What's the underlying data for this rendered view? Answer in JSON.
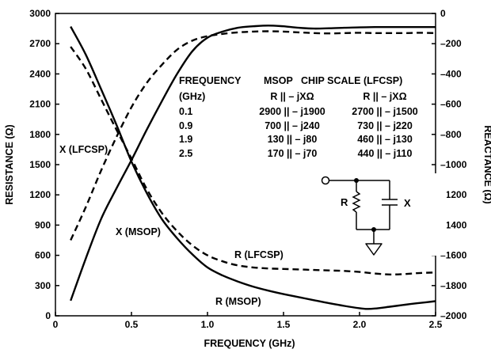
{
  "chart_data": {
    "type": "line",
    "title": "",
    "xlabel": "FREQUENCY (GHz)",
    "ylabel_left": "RESISTANCE (Ω)",
    "ylabel_right": "REACTANCE (Ω)",
    "xlim": [
      0,
      2.5
    ],
    "ylim_left": [
      0,
      3000
    ],
    "ylim_right": [
      -2000,
      0
    ],
    "x_ticks": [
      "0",
      "0.5",
      "1.0",
      "1.5",
      "2.0",
      "2.5"
    ],
    "y_left_ticks": [
      "0",
      "300",
      "600",
      "900",
      "1200",
      "1500",
      "1800",
      "2100",
      "2400",
      "2700",
      "3000"
    ],
    "y_right_ticks": [
      "0",
      "–200",
      "–400",
      "–600",
      "–800",
      "–1000",
      "–1200",
      "–1400",
      "–1600",
      "–1800",
      "–2000"
    ],
    "series": [
      {
        "name": "R (MSOP)",
        "axis": "left",
        "style": "solid",
        "x": [
          0.1,
          0.2,
          0.3,
          0.4,
          0.5,
          0.6,
          0.7,
          0.8,
          0.9,
          1.0,
          1.1,
          1.2,
          1.3,
          1.4,
          1.5,
          1.6,
          1.7,
          1.8,
          1.9,
          2.0,
          2.05,
          2.1,
          2.2,
          2.3,
          2.4,
          2.5
        ],
        "y": [
          2870,
          2590,
          2250,
          1900,
          1530,
          1220,
          960,
          770,
          610,
          480,
          400,
          340,
          290,
          250,
          215,
          185,
          155,
          125,
          98,
          75,
          68,
          72,
          90,
          110,
          128,
          145
        ]
      },
      {
        "name": "R (LFCSP)",
        "axis": "left",
        "style": "dashed",
        "x": [
          0.1,
          0.2,
          0.3,
          0.4,
          0.5,
          0.6,
          0.7,
          0.8,
          0.9,
          1.0,
          1.1,
          1.2,
          1.3,
          1.4,
          1.5,
          1.6,
          1.7,
          1.8,
          1.9,
          2.0,
          2.1,
          2.2,
          2.3,
          2.4,
          2.5
        ],
        "y": [
          2670,
          2450,
          2150,
          1850,
          1560,
          1260,
          1020,
          840,
          700,
          600,
          540,
          500,
          480,
          470,
          465,
          460,
          455,
          450,
          445,
          435,
          420,
          410,
          415,
          425,
          430
        ]
      },
      {
        "name": "X (MSOP)",
        "axis": "right",
        "style": "solid",
        "x": [
          0.1,
          0.2,
          0.3,
          0.4,
          0.5,
          0.6,
          0.7,
          0.8,
          0.9,
          1.0,
          1.1,
          1.2,
          1.3,
          1.4,
          1.5,
          1.6,
          1.7,
          1.8,
          1.9,
          2.0,
          2.1,
          2.2,
          2.3,
          2.4,
          2.5
        ],
        "y": [
          -1900,
          -1620,
          -1360,
          -1160,
          -970,
          -770,
          -580,
          -400,
          -250,
          -160,
          -120,
          -95,
          -85,
          -80,
          -85,
          -95,
          -100,
          -98,
          -95,
          -92,
          -90,
          -90,
          -90,
          -90,
          -90
        ]
      },
      {
        "name": "X (LFCSP)",
        "axis": "right",
        "style": "dashed",
        "x": [
          0.1,
          0.2,
          0.3,
          0.4,
          0.5,
          0.6,
          0.7,
          0.8,
          0.9,
          1.0,
          1.1,
          1.2,
          1.3,
          1.4,
          1.5,
          1.6,
          1.7,
          1.8,
          1.9,
          2.0,
          2.1,
          2.2,
          2.3,
          2.4,
          2.5
        ],
        "y": [
          -1500,
          -1280,
          -1040,
          -820,
          -620,
          -460,
          -340,
          -240,
          -180,
          -150,
          -135,
          -125,
          -120,
          -118,
          -120,
          -125,
          -130,
          -132,
          -130,
          -128,
          -130,
          -130,
          -130,
          -128,
          -130
        ]
      }
    ],
    "curve_labels": [
      "X (LFCSP)",
      "X (MSOP)",
      "R (LFCSP)",
      "R (MSOP)"
    ],
    "grid": false,
    "table": {
      "rows": [
        [
          "FREQUENCY",
          "MSOP",
          "CHIP SCALE (LFCSP)"
        ],
        [
          "(GHz)",
          "R || – jXΩ",
          "R || – jXΩ"
        ],
        [
          "0.1",
          "2900 || – j1900",
          "2700 || – j1500"
        ],
        [
          "0.9",
          "700 || – j240",
          "730 || – j220"
        ],
        [
          "1.9",
          "130 || – j80",
          "460 || – j130"
        ],
        [
          "2.5",
          "170 || – j70",
          "440 || – j110"
        ]
      ]
    },
    "circuit": {
      "r_label": "R",
      "x_label": "X"
    }
  }
}
